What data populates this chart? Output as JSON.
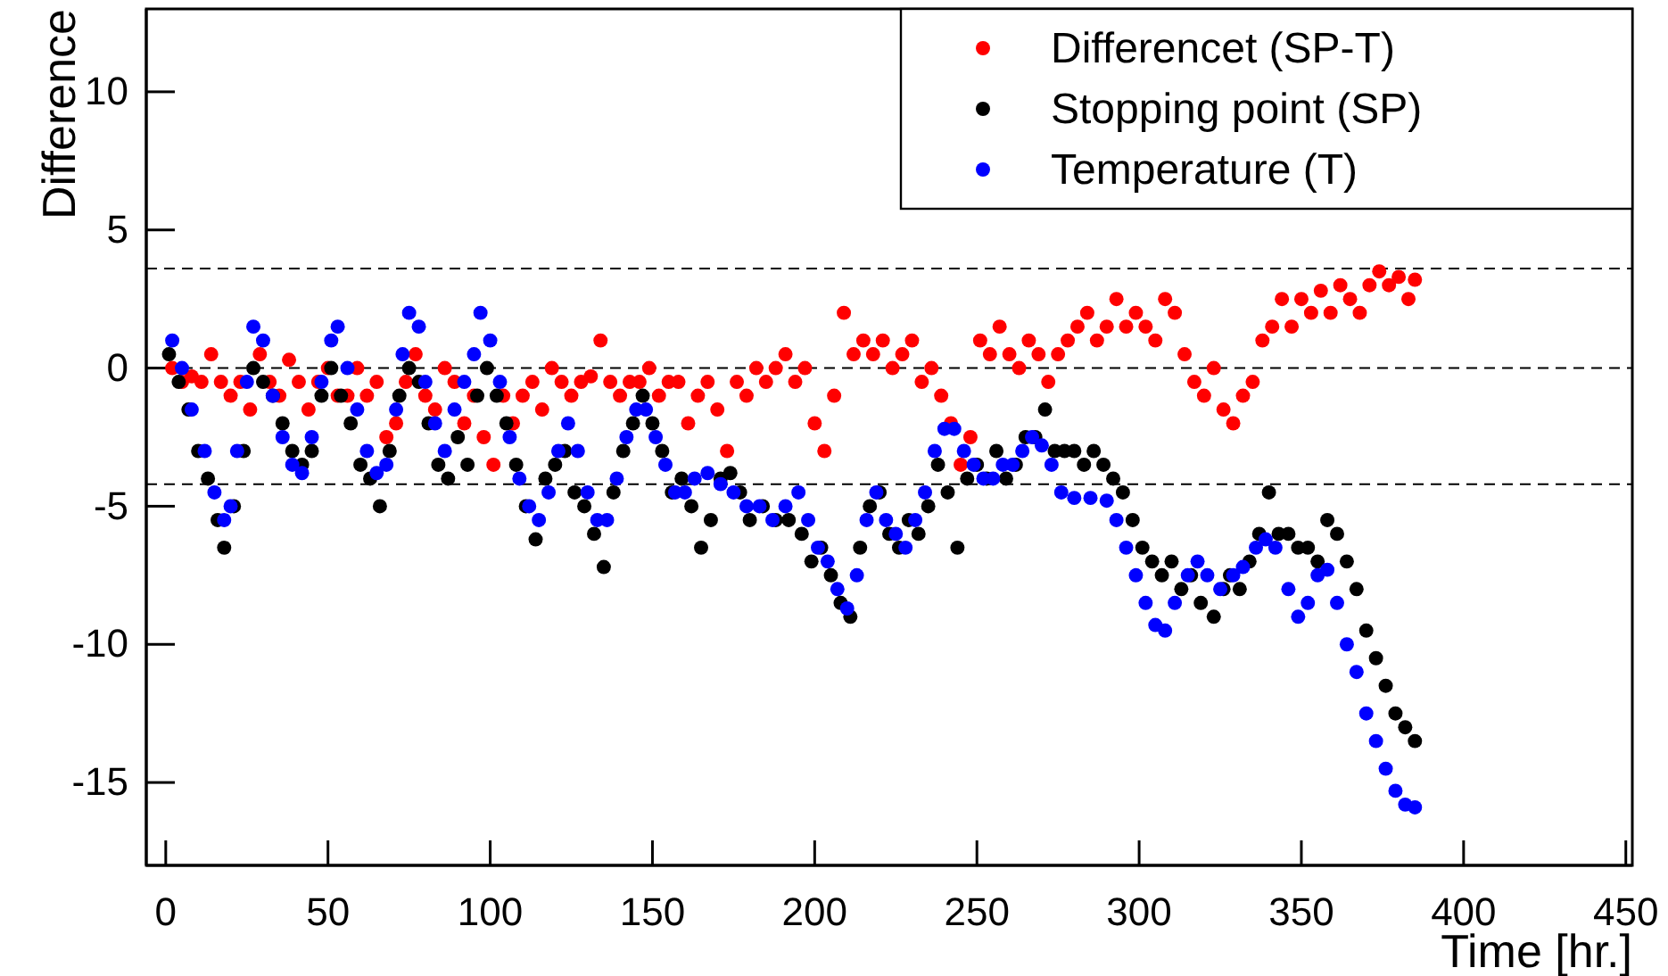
{
  "chart_data": {
    "type": "scatter",
    "xlabel": "Time [hr.]",
    "ylabel": "Difference",
    "xlim": [
      -6,
      452
    ],
    "ylim": [
      -18,
      13
    ],
    "xticks": [
      0,
      50,
      100,
      150,
      200,
      250,
      300,
      350,
      400,
      450
    ],
    "yticks": [
      -15,
      -10,
      -5,
      0,
      5,
      10
    ],
    "grid": false,
    "legend": "top right",
    "marker": "circle",
    "ref_lines": [
      {
        "axis": "y",
        "value": 3.6,
        "line_style": "dashed",
        "color": "#000000"
      },
      {
        "axis": "y",
        "value": 0,
        "line_style": "dashed",
        "color": "#000000"
      },
      {
        "axis": "y",
        "value": -4.2,
        "line_style": "dashed",
        "color": "#000000"
      }
    ],
    "series": [
      {
        "name": "Differencet (SP-T)",
        "color": "#ff0000",
        "x": [
          2,
          5,
          8,
          11,
          14,
          17,
          20,
          23,
          26,
          29,
          32,
          35,
          38,
          41,
          44,
          47,
          50,
          53,
          56,
          59,
          62,
          65,
          68,
          71,
          74,
          77,
          80,
          83,
          86,
          89,
          92,
          95,
          98,
          101,
          104,
          107,
          110,
          113,
          116,
          119,
          122,
          125,
          128,
          131,
          134,
          137,
          140,
          143,
          146,
          149,
          152,
          155,
          158,
          161,
          164,
          167,
          170,
          173,
          176,
          179,
          182,
          185,
          188,
          191,
          194,
          197,
          200,
          203,
          206,
          209,
          212,
          215,
          218,
          221,
          224,
          227,
          230,
          233,
          236,
          239,
          242,
          245,
          248,
          251,
          254,
          257,
          260,
          263,
          266,
          269,
          272,
          275,
          278,
          281,
          284,
          287,
          290,
          293,
          296,
          299,
          302,
          305,
          308,
          311,
          314,
          317,
          320,
          323,
          326,
          329,
          332,
          335,
          338,
          341,
          344,
          347,
          350,
          353,
          356,
          359,
          362,
          365,
          368,
          371,
          374,
          377,
          380,
          383,
          385
        ],
        "values": [
          0,
          -0.5,
          -0.3,
          -0.5,
          0.5,
          -0.5,
          -1,
          -0.5,
          -1.5,
          0.5,
          -0.5,
          -1,
          0.3,
          -0.5,
          -1.5,
          -0.5,
          0,
          -1,
          -1,
          0,
          -1,
          -0.5,
          -2.5,
          -2,
          -0.5,
          0.5,
          -1,
          -1.5,
          0,
          -0.5,
          -2,
          -1,
          -2.5,
          -3.5,
          -1,
          -2,
          -1,
          -0.5,
          -1.5,
          0,
          -0.5,
          -1,
          -0.5,
          -0.3,
          1,
          -0.5,
          -1,
          -0.5,
          -0.5,
          0,
          -1,
          -0.5,
          -0.5,
          -2,
          -1,
          -0.5,
          -1.5,
          -3,
          -0.5,
          -1,
          0,
          -0.5,
          0,
          0.5,
          -0.5,
          0,
          -2,
          -3,
          -1,
          2,
          0.5,
          1,
          0.5,
          1,
          0,
          0.5,
          1,
          -0.5,
          0,
          -1,
          -2,
          -3.5,
          -2.5,
          1,
          0.5,
          1.5,
          0.5,
          0,
          1,
          0.5,
          -0.5,
          0.5,
          1,
          1.5,
          2,
          1,
          1.5,
          2.5,
          1.5,
          2,
          1.5,
          1,
          2.5,
          2,
          0.5,
          -0.5,
          -1,
          0,
          -1.5,
          -2,
          -1,
          -0.5,
          1,
          1.5,
          2.5,
          1.5,
          2.5,
          2,
          2.8,
          2,
          3,
          2.5,
          2,
          3,
          3.5,
          3,
          3.3,
          2.5,
          3.2
        ]
      },
      {
        "name": "Stopping point (SP)",
        "color": "#000000",
        "x": [
          1,
          4,
          7,
          10,
          13,
          16,
          18,
          21,
          24,
          27,
          30,
          33,
          36,
          39,
          42,
          45,
          48,
          51,
          54,
          57,
          60,
          63,
          66,
          69,
          72,
          75,
          78,
          81,
          84,
          87,
          90,
          93,
          96,
          99,
          102,
          105,
          108,
          111,
          114,
          117,
          120,
          123,
          126,
          129,
          132,
          135,
          138,
          141,
          144,
          147,
          150,
          153,
          156,
          159,
          162,
          165,
          168,
          171,
          174,
          177,
          180,
          184,
          188,
          192,
          196,
          199,
          202,
          205,
          208,
          211,
          214,
          217,
          220,
          223,
          226,
          229,
          232,
          235,
          238,
          241,
          244,
          247,
          250,
          253,
          256,
          259,
          262,
          265,
          268,
          271,
          274,
          277,
          280,
          283,
          286,
          289,
          292,
          295,
          298,
          301,
          304,
          307,
          310,
          313,
          316,
          319,
          323,
          326,
          328,
          331,
          334,
          337,
          340,
          343,
          346,
          349,
          352,
          355,
          358,
          361,
          364,
          367,
          370,
          373,
          376,
          379,
          382,
          385
        ],
        "values": [
          0.5,
          -0.5,
          -1.5,
          -3,
          -4,
          -5.5,
          -6.5,
          -5,
          -3,
          0,
          -0.5,
          -1,
          -2,
          -3,
          -3.5,
          -3,
          -1,
          0,
          -1,
          -2,
          -3.5,
          -4,
          -5,
          -3,
          -1,
          0,
          -0.5,
          -2,
          -3.5,
          -4,
          -2.5,
          -3.5,
          -1,
          0,
          -1,
          -2,
          -3.5,
          -5,
          -6.2,
          -4,
          -3.5,
          -3,
          -4.5,
          -5,
          -6,
          -7.2,
          -4.5,
          -3,
          -2,
          -1,
          -2,
          -3,
          -4.5,
          -4,
          -5,
          -6.5,
          -5.5,
          -4,
          -3.8,
          -4.5,
          -5.5,
          -5,
          -5.5,
          -5.5,
          -6,
          -7,
          -6.5,
          -7.5,
          -8.5,
          -9,
          -6.5,
          -5,
          -4.5,
          -6,
          -6.5,
          -5.5,
          -6,
          -5,
          -3.5,
          -4.5,
          -6.5,
          -4,
          -3.5,
          -4,
          -3,
          -4,
          -3.5,
          -2.5,
          -2.5,
          -1.5,
          -3,
          -3,
          -3,
          -3.5,
          -3,
          -3.5,
          -4,
          -4.5,
          -5.5,
          -6.5,
          -7,
          -7.5,
          -7,
          -8,
          -7.5,
          -8.5,
          -9,
          -8,
          -7.5,
          -8,
          -7,
          -6,
          -4.5,
          -6,
          -6,
          -6.5,
          -6.5,
          -7,
          -5.5,
          -6,
          -7,
          -8,
          -9.5,
          -10.5,
          -11.5,
          -12.5,
          -13,
          -13.5
        ]
      },
      {
        "name": "Temperature (T)",
        "color": "#0000ff",
        "x": [
          2,
          5,
          8,
          12,
          15,
          18,
          20,
          22,
          25,
          27,
          30,
          33,
          36,
          39,
          42,
          45,
          48,
          51,
          53,
          56,
          59,
          62,
          65,
          68,
          71,
          73,
          75,
          78,
          80,
          83,
          86,
          89,
          92,
          95,
          97,
          100,
          103,
          106,
          109,
          112,
          115,
          118,
          121,
          124,
          127,
          130,
          133,
          136,
          139,
          142,
          145,
          148,
          151,
          154,
          157,
          160,
          163,
          167,
          171,
          175,
          179,
          183,
          187,
          191,
          195,
          198,
          201,
          204,
          207,
          210,
          213,
          216,
          219,
          222,
          225,
          228,
          231,
          234,
          237,
          240,
          243,
          246,
          249,
          252,
          255,
          258,
          261,
          264,
          267,
          270,
          273,
          276,
          280,
          285,
          290,
          293,
          296,
          299,
          302,
          305,
          308,
          311,
          315,
          318,
          321,
          325,
          329,
          332,
          336,
          339,
          342,
          346,
          349,
          352,
          355,
          358,
          361,
          364,
          367,
          370,
          373,
          376,
          379,
          382,
          385
        ],
        "values": [
          1,
          0,
          -1.5,
          -3,
          -4.5,
          -5.5,
          -5,
          -3,
          -0.5,
          1.5,
          1,
          -1,
          -2.5,
          -3.5,
          -3.8,
          -2.5,
          -0.5,
          1,
          1.5,
          0,
          -1.5,
          -3,
          -3.8,
          -3.5,
          -1.5,
          0.5,
          2,
          1.5,
          -0.5,
          -2,
          -3,
          -1.5,
          -0.5,
          0.5,
          2,
          1,
          -0.5,
          -2.5,
          -4,
          -5,
          -5.5,
          -4.5,
          -3,
          -2,
          -3,
          -4.5,
          -5.5,
          -5.5,
          -4,
          -2.5,
          -1.5,
          -1.5,
          -2.5,
          -3.5,
          -4.5,
          -4.5,
          -4,
          -3.8,
          -4.2,
          -4.5,
          -5,
          -5,
          -5.5,
          -5,
          -4.5,
          -5.5,
          -6.5,
          -7,
          -8,
          -8.7,
          -7.5,
          -5.5,
          -4.5,
          -5.5,
          -6,
          -6.5,
          -5.5,
          -4.5,
          -3,
          -2.2,
          -2.2,
          -3,
          -3.5,
          -4,
          -4,
          -3.5,
          -3.5,
          -3,
          -2.5,
          -2.8,
          -3.5,
          -4.5,
          -4.7,
          -4.7,
          -4.8,
          -5.5,
          -6.5,
          -7.5,
          -8.5,
          -9.3,
          -9.5,
          -8.5,
          -7.5,
          -7,
          -7.5,
          -8,
          -7.5,
          -7.2,
          -6.5,
          -6.2,
          -6.5,
          -8,
          -9,
          -8.5,
          -7.5,
          -7.3,
          -8.5,
          -10,
          -11,
          -12.5,
          -13.5,
          -14.5,
          -15.3,
          -15.8,
          -15.9
        ]
      }
    ]
  }
}
